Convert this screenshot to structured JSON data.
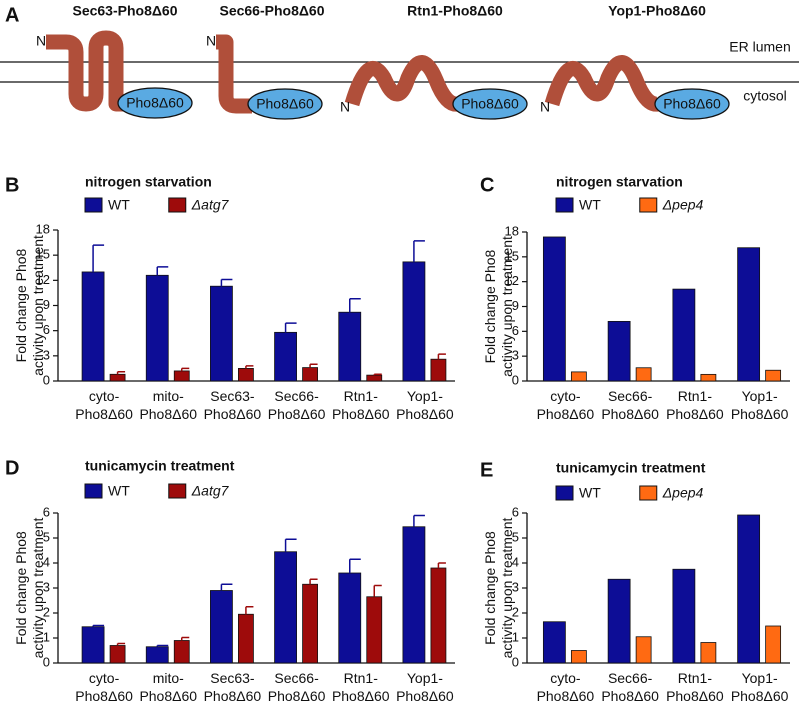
{
  "panel_a": {
    "label": "A",
    "lumen": "ER lumen",
    "cytosol": "cytosol",
    "constructs": [
      {
        "name": "Sec63-Pho8Δ60",
        "n": "N",
        "tag": "Pho8Δ60"
      },
      {
        "name": "Sec66-Pho8Δ60",
        "n": "N",
        "tag": "Pho8Δ60"
      },
      {
        "name": "Rtn1-Pho8Δ60",
        "n": "N",
        "tag": "Pho8Δ60"
      },
      {
        "name": "Yop1-Pho8Δ60",
        "n": "N",
        "tag": "Pho8Δ60"
      }
    ]
  },
  "chart_data": [
    {
      "panel": "B",
      "type": "bar",
      "title": "nitrogen starvation",
      "y_label": "Fold change Pho8\nactivity upon treatment",
      "categories": [
        "cyto-\nPho8Δ60",
        "mito-\nPho8Δ60",
        "Sec63-\nPho8Δ60",
        "Sec66-\nPho8Δ60",
        "Rtn1-\nPho8Δ60",
        "Yop1-\nPho8Δ60"
      ],
      "series": [
        {
          "name": "WT",
          "color": "#0d0d96",
          "values": [
            13.0,
            12.6,
            11.3,
            5.8,
            8.2,
            14.2
          ],
          "errors": [
            3.2,
            1.0,
            0.8,
            1.1,
            1.6,
            2.5
          ]
        },
        {
          "name": "Δatg7",
          "color": "#9e0b0b",
          "values": [
            0.8,
            1.2,
            1.5,
            1.6,
            0.7,
            2.6
          ],
          "errors": [
            0.3,
            0.3,
            0.3,
            0.4,
            0.1,
            0.6
          ]
        }
      ],
      "ylim": [
        0,
        18
      ],
      "yticks": [
        0,
        3,
        6,
        9,
        12,
        15,
        18
      ]
    },
    {
      "panel": "C",
      "type": "bar",
      "title": "nitrogen starvation",
      "y_label": "Fold change Pho8\nactivity upon treatment",
      "categories": [
        "cyto-\nPho8Δ60",
        "Sec66-\nPho8Δ60",
        "Rtn1-\nPho8Δ60",
        "Yop1-\nPho8Δ60"
      ],
      "series": [
        {
          "name": "WT",
          "color": "#0d0d96",
          "values": [
            17.4,
            7.2,
            11.1,
            16.1
          ]
        },
        {
          "name": "Δpep4",
          "color": "#ff6a12",
          "values": [
            1.1,
            1.6,
            0.8,
            1.3
          ]
        }
      ],
      "ylim": [
        0,
        18
      ],
      "yticks": [
        0,
        3,
        6,
        9,
        12,
        15,
        18
      ]
    },
    {
      "panel": "D",
      "type": "bar",
      "title": "tunicamycin treatment",
      "y_label": "Fold change Pho8\nactivity upon treatment",
      "categories": [
        "cyto-\nPho8Δ60",
        "mito-\nPho8Δ60",
        "Sec63-\nPho8Δ60",
        "Sec66-\nPho8Δ60",
        "Rtn1-\nPho8Δ60",
        "Yop1-\nPho8Δ60"
      ],
      "series": [
        {
          "name": "WT",
          "color": "#0d0d96",
          "values": [
            1.45,
            0.65,
            2.9,
            4.45,
            3.6,
            5.45
          ],
          "errors": [
            0.05,
            0.05,
            0.25,
            0.5,
            0.55,
            0.45
          ]
        },
        {
          "name": "Δatg7",
          "color": "#9e0b0b",
          "values": [
            0.7,
            0.9,
            1.95,
            3.15,
            2.65,
            3.8
          ],
          "errors": [
            0.08,
            0.12,
            0.3,
            0.2,
            0.45,
            0.2
          ]
        }
      ],
      "ylim": [
        0,
        6
      ],
      "yticks": [
        0,
        1,
        2,
        3,
        4,
        5,
        6
      ]
    },
    {
      "panel": "E",
      "type": "bar",
      "title": "tunicamycin treatment",
      "y_label": "Fold change Pho8\nactivity upon treatment",
      "categories": [
        "cyto-\nPho8Δ60",
        "Sec66-\nPho8Δ60",
        "Rtn1-\nPho8Δ60",
        "Yop1-\nPho8Δ60"
      ],
      "series": [
        {
          "name": "WT",
          "color": "#0d0d96",
          "values": [
            1.65,
            3.35,
            3.75,
            5.92
          ]
        },
        {
          "name": "Δpep4",
          "color": "#ff6a12",
          "values": [
            0.5,
            1.05,
            0.82,
            1.48
          ]
        }
      ],
      "ylim": [
        0,
        6
      ],
      "yticks": [
        0,
        1,
        2,
        3,
        4,
        5,
        6
      ]
    }
  ]
}
